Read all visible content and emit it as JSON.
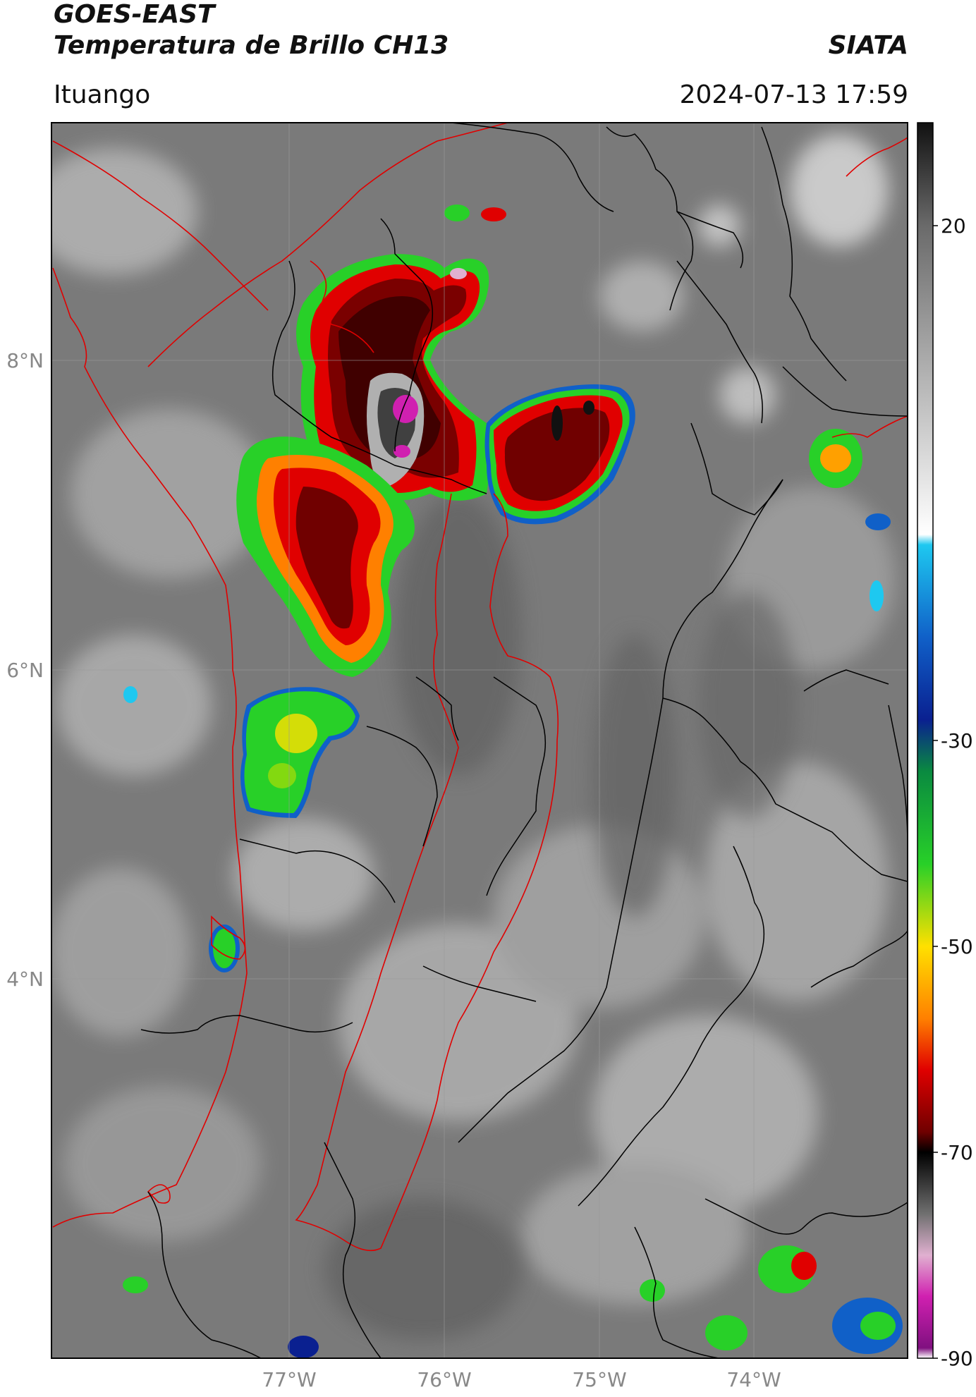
{
  "header": {
    "satellite": "GOES-EAST",
    "product": "Temperatura de Brillo CH13",
    "brand": "SIATA",
    "location": "Ituango",
    "datetime": "2024-07-13 17:59"
  },
  "map": {
    "lat_ticks": [
      "8°N",
      "6°N",
      "4°N"
    ],
    "lon_ticks": [
      "77°W",
      "76°W",
      "75°W",
      "74°W"
    ],
    "base_colors": {
      "land_gray": "#7a7a7a",
      "light_gray": "#b5b5b5",
      "border_black": "#000000",
      "border_red": "#e00000"
    }
  },
  "colorbar": {
    "ticks": [
      "20",
      "-30",
      "-50",
      "-70",
      "-90"
    ],
    "range": [
      -90,
      30
    ],
    "stops": [
      {
        "value": 30,
        "color": "#111111"
      },
      {
        "value": 20,
        "color": "#6a6a6a"
      },
      {
        "value": -10,
        "color": "#ffffff"
      },
      {
        "value": -11,
        "color": "#1ec8f0"
      },
      {
        "value": -20,
        "color": "#1060c8"
      },
      {
        "value": -28,
        "color": "#0a2090"
      },
      {
        "value": -33,
        "color": "#0a8a40"
      },
      {
        "value": -42,
        "color": "#28d028"
      },
      {
        "value": -50,
        "color": "#ffe000"
      },
      {
        "value": -57,
        "color": "#ff8000"
      },
      {
        "value": -62,
        "color": "#e00000"
      },
      {
        "value": -68,
        "color": "#700000"
      },
      {
        "value": -70,
        "color": "#000000"
      },
      {
        "value": -76,
        "color": "#707070"
      },
      {
        "value": -80,
        "color": "#e0b0d0"
      },
      {
        "value": -84,
        "color": "#d020b0"
      },
      {
        "value": -89,
        "color": "#801080"
      },
      {
        "value": -90,
        "color": "#ffffff"
      }
    ]
  }
}
